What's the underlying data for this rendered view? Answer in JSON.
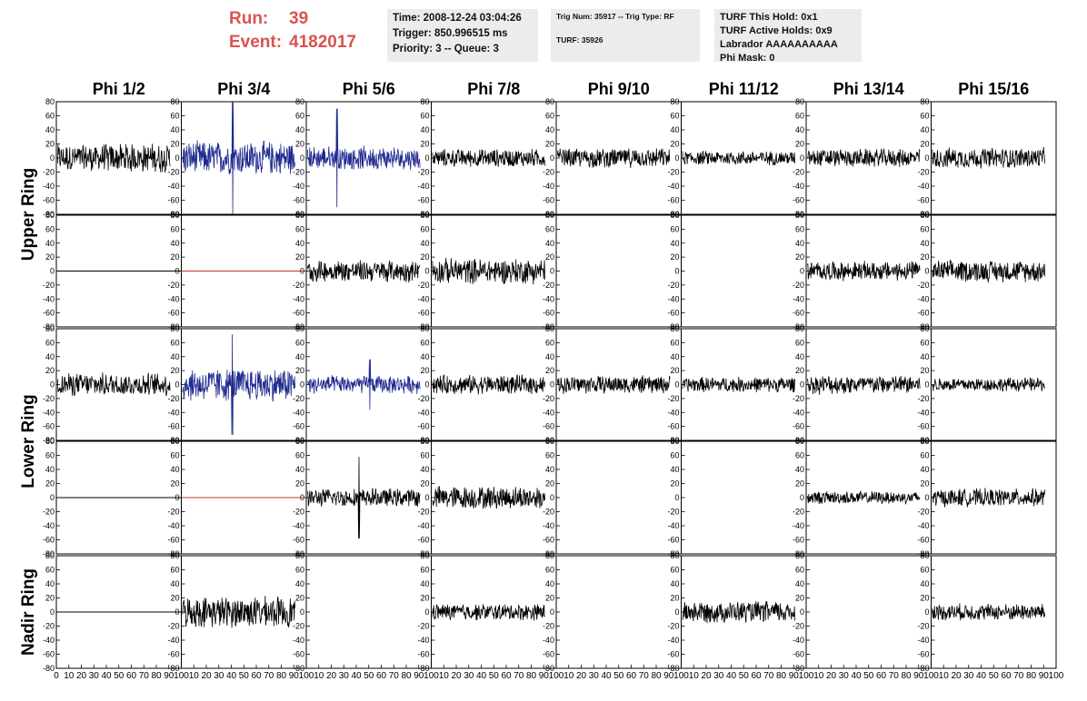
{
  "header": {
    "run_label": "Run:",
    "run_value": "39",
    "event_label": "Event:",
    "event_value": "4182017"
  },
  "info_panel_1": {
    "time": "Time: 2008-12-24 03:04:26",
    "trigger": "Trigger: 850.996515 ms",
    "priority": "Priority: 3 -- Queue: 3"
  },
  "info_panel_2": {
    "trig": "Trig Num: 35917 -- Trig Type: RF",
    "blank": "",
    "turf": "TURF: 35926"
  },
  "info_panel_3": {
    "this_hold": "TURF This Hold: 0x1",
    "active_holds": "TURF Active Holds: 0x9",
    "labrador": "Labrador AAAAAAAAAA",
    "phi_mask": "Phi Mask: 0"
  },
  "chart_data": {
    "type": "line",
    "columns": [
      "Phi 1/2",
      "Phi 3/4",
      "Phi 5/6",
      "Phi 7/8",
      "Phi 9/10",
      "Phi 11/12",
      "Phi 13/14",
      "Phi 15/16"
    ],
    "ring_labels": [
      "Upper Ring",
      "Lower Ring",
      "Nadir Ring"
    ],
    "ylim": [
      -80,
      80
    ],
    "yticks": [
      -80,
      -60,
      -40,
      -20,
      0,
      20,
      40,
      60,
      80
    ],
    "xlim": [
      0,
      100
    ],
    "xticks": [
      0,
      10,
      20,
      30,
      40,
      50,
      60,
      70,
      80,
      90,
      100
    ],
    "grid": false,
    "colors": {
      "signal": "#000000",
      "trigger_signal": "#1f2a8f",
      "flat_line": "#c0392b"
    },
    "note_rows": "rows 1-2 = Upper Ring, rows 3-4 = Lower Ring, row 5 = Nadir Ring",
    "cells": [
      [
        {
          "kind": "noise",
          "amp": 22
        },
        {
          "kind": "trigger",
          "amp": 26,
          "spike": 80
        },
        {
          "kind": "trigger",
          "amp": 18,
          "spike": 70
        },
        {
          "kind": "noise",
          "amp": 14
        },
        {
          "kind": "noise",
          "amp": 15
        },
        {
          "kind": "noise",
          "amp": 11
        },
        {
          "kind": "noise",
          "amp": 14
        },
        {
          "kind": "noise",
          "amp": 16
        }
      ],
      [
        {
          "kind": "flat",
          "color": "black"
        },
        {
          "kind": "flat",
          "color": "red"
        },
        {
          "kind": "noise",
          "amp": 17
        },
        {
          "kind": "noise",
          "amp": 20
        },
        {
          "kind": "none"
        },
        {
          "kind": "none"
        },
        {
          "kind": "noise",
          "amp": 15
        },
        {
          "kind": "noise",
          "amp": 17
        }
      ],
      [
        {
          "kind": "noise",
          "amp": 18
        },
        {
          "kind": "trigger",
          "amp": 26,
          "spike": 72
        },
        {
          "kind": "trigger",
          "amp": 14,
          "spike": 36
        },
        {
          "kind": "noise",
          "amp": 15
        },
        {
          "kind": "noise",
          "amp": 14
        },
        {
          "kind": "noise",
          "amp": 12
        },
        {
          "kind": "noise",
          "amp": 15
        },
        {
          "kind": "noise",
          "amp": 11
        }
      ],
      [
        {
          "kind": "flat",
          "color": "black"
        },
        {
          "kind": "flat",
          "color": "red"
        },
        {
          "kind": "noise",
          "amp": 14,
          "spike": 58
        },
        {
          "kind": "noise",
          "amp": 18
        },
        {
          "kind": "none"
        },
        {
          "kind": "none"
        },
        {
          "kind": "noise",
          "amp": 10
        },
        {
          "kind": "noise",
          "amp": 14
        }
      ],
      [
        {
          "kind": "flat",
          "color": "black"
        },
        {
          "kind": "noise",
          "amp": 24
        },
        {
          "kind": "none"
        },
        {
          "kind": "noise",
          "amp": 13
        },
        {
          "kind": "none"
        },
        {
          "kind": "noise",
          "amp": 17
        },
        {
          "kind": "none"
        },
        {
          "kind": "noise",
          "amp": 13
        }
      ]
    ]
  }
}
